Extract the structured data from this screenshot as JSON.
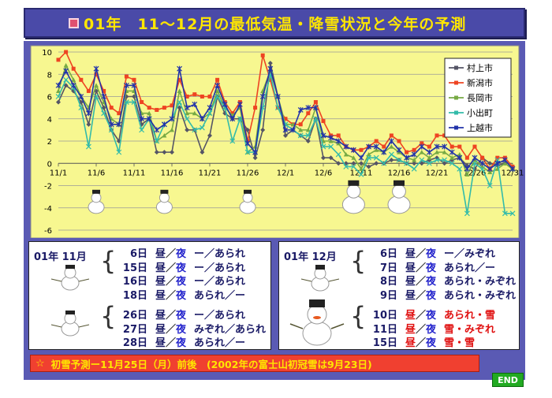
{
  "title": "01年　11～12月の最低気温・降雪状況と今年の予測",
  "chart_data": {
    "type": "line",
    "x": [
      "11/1",
      "11/2",
      "11/3",
      "11/4",
      "11/5",
      "11/6",
      "11/7",
      "11/8",
      "11/9",
      "11/10",
      "11/11",
      "11/12",
      "11/13",
      "11/14",
      "11/15",
      "11/16",
      "11/17",
      "11/18",
      "11/19",
      "11/20",
      "11/21",
      "11/22",
      "11/23",
      "11/24",
      "11/25",
      "11/26",
      "11/27",
      "11/28",
      "11/29",
      "11/30",
      "12/1",
      "12/2",
      "12/3",
      "12/4",
      "12/5",
      "12/6",
      "12/7",
      "12/8",
      "12/9",
      "12/10",
      "12/11",
      "12/12",
      "12/13",
      "12/14",
      "12/15",
      "12/16",
      "12/17",
      "12/18",
      "12/19",
      "12/20",
      "12/21",
      "12/22",
      "12/23",
      "12/24",
      "12/25",
      "12/26",
      "12/27",
      "12/28",
      "12/29",
      "12/30",
      "12/31"
    ],
    "x_tick_labels": [
      "11/1",
      "11/6",
      "11/11",
      "11/16",
      "11/21",
      "11/26",
      "12/1",
      "12/6",
      "12/11",
      "12/16",
      "12/21",
      "12/26",
      "12/31"
    ],
    "y_tick_labels": [
      "10",
      "8",
      "6",
      "4",
      "2",
      "0",
      "-2",
      "-4",
      "-6"
    ],
    "ylim": [
      -6,
      10
    ],
    "series": [
      {
        "name": "村上市",
        "color": "#555566",
        "marker": "diamond",
        "values": [
          5.5,
          7,
          6.5,
          5.5,
          3.5,
          6.5,
          5,
          3,
          2,
          6,
          6,
          3.5,
          4,
          1,
          1,
          1,
          5,
          3,
          3,
          1,
          2.5,
          6,
          4.5,
          4,
          4,
          3,
          0.5,
          3,
          9,
          6,
          2.5,
          3,
          2.5,
          2,
          4,
          0.5,
          0.5,
          0,
          0,
          0,
          0,
          -0.3,
          0,
          0,
          0.3,
          0.3,
          0,
          0,
          0,
          0.3,
          0.5,
          0,
          0.3,
          0.5,
          -0.2,
          -0.5,
          0.5,
          0,
          -0.2,
          0,
          -0.5
        ]
      },
      {
        "name": "新潟市",
        "color": "#ee4422",
        "marker": "square",
        "values": [
          9.3,
          10,
          8.5,
          7.5,
          6.5,
          8,
          6.5,
          5,
          4.5,
          7.8,
          7.5,
          5.5,
          5,
          4.8,
          5,
          5.2,
          7.5,
          6,
          6.2,
          6,
          6,
          7.5,
          5.5,
          4.5,
          5.5,
          2,
          5,
          9.7,
          7.5,
          5,
          4,
          3.5,
          3.5,
          4.5,
          5.5,
          3.8,
          2.5,
          2.5,
          1.5,
          1.2,
          1.2,
          1.5,
          2,
          1.5,
          2.5,
          2,
          1,
          1.2,
          1.8,
          1.5,
          2.5,
          2.5,
          1.5,
          1.5,
          0.5,
          1.5,
          0.5,
          -0.5,
          0.5,
          0.5,
          -0.3
        ]
      },
      {
        "name": "長岡市",
        "color": "#77aa44",
        "marker": "triangle",
        "values": [
          6.5,
          8.8,
          7.5,
          6,
          5,
          7,
          5.5,
          4,
          3.5,
          6.5,
          6.5,
          4.5,
          4.5,
          2,
          2.5,
          3,
          6.5,
          4.5,
          4.5,
          4,
          4.5,
          6.5,
          5,
          4.3,
          5,
          1,
          1.5,
          6.5,
          8.3,
          6,
          3.5,
          3.5,
          3,
          3,
          5,
          2,
          2,
          1.8,
          0.8,
          0.5,
          -0.5,
          0.8,
          1.2,
          1,
          1.5,
          1,
          0.5,
          0.3,
          1,
          0.5,
          1,
          1,
          0.5,
          0.8,
          -1,
          0.3,
          -0.3,
          -0.8,
          -0.5,
          0,
          -0.5
        ]
      },
      {
        "name": "小出町",
        "color": "#33bbaa",
        "marker": "x",
        "values": [
          6,
          7.5,
          6.8,
          5,
          1.5,
          6,
          4.5,
          3,
          1,
          5.5,
          5.5,
          3,
          4,
          2,
          3.5,
          4,
          5.5,
          4,
          3,
          3.2,
          4.5,
          6,
          5,
          2,
          4,
          1,
          1,
          5,
          8,
          5,
          3.5,
          3,
          2.5,
          2.5,
          4,
          1.5,
          1.5,
          0.8,
          -0.3,
          -0.3,
          -1,
          0.5,
          0.5,
          0,
          0.8,
          0.3,
          0,
          -0.5,
          0.3,
          0,
          0.3,
          0.3,
          0,
          -0.5,
          -4.5,
          0,
          -0.5,
          -2,
          0.3,
          -4.5,
          -4.5
        ]
      },
      {
        "name": "上越市",
        "color": "#2233aa",
        "marker": "star",
        "values": [
          7,
          8.3,
          7,
          6,
          4.5,
          8.5,
          6,
          3.5,
          3.5,
          7,
          7,
          4,
          4,
          3,
          3.5,
          4,
          8.5,
          5,
          5.3,
          4,
          5,
          7,
          5.3,
          4,
          5.3,
          1.8,
          1,
          6,
          8.5,
          6,
          3,
          3,
          4.8,
          5,
          5,
          2.5,
          2.3,
          2,
          1.5,
          1.2,
          0.5,
          1.5,
          1.5,
          1,
          2,
          1.2,
          0.5,
          0.8,
          1.5,
          1,
          1.5,
          1.5,
          1,
          0.5,
          -0.5,
          0.5,
          0,
          -0.5,
          0,
          0.3,
          -0.5
        ]
      }
    ]
  },
  "nov_box": {
    "title": "01年 11月",
    "rows": [
      {
        "day": "6日",
        "cond": "ー／あられ",
        "red": false
      },
      {
        "day": "15日",
        "cond": "ー／あられ",
        "red": false
      },
      {
        "day": "16日",
        "cond": "ー／あられ",
        "red": false
      },
      {
        "day": "18日",
        "cond": "あられ／ー",
        "red": false
      },
      {
        "day": "26日",
        "cond": "ー／あられ",
        "red": false
      },
      {
        "day": "27日",
        "cond": "みぞれ／あられ",
        "red": false
      },
      {
        "day": "28日",
        "cond": "あられ／ー",
        "red": false
      }
    ]
  },
  "dec_box": {
    "title": "01年 12月",
    "rows": [
      {
        "day": "6日",
        "cond": "ー／みぞれ",
        "red": false
      },
      {
        "day": "7日",
        "cond": "あられ／ー",
        "red": false
      },
      {
        "day": "8日",
        "cond": "あられ・みぞれ",
        "red": false
      },
      {
        "day": "9日",
        "cond": "あられ・みぞれ",
        "red": false
      },
      {
        "day": "10日",
        "cond": "あられ・雪",
        "red": true
      },
      {
        "day": "11日",
        "cond": "雪・みぞれ",
        "red": true
      },
      {
        "day": "15日",
        "cond": "雪・雪",
        "red": true
      }
    ]
  },
  "row_labels": {
    "day": "昼",
    "slash": "／",
    "night": "夜"
  },
  "forecast": {
    "star": "☆",
    "text": "初雪予測ー11月25日（月）前後　(2002年の富士山初冠雪は9月23日)"
  },
  "end_label": "END",
  "colors": {
    "title_bg": "#4a4aa8",
    "title_text": "#ffe600",
    "panel_bg": "#5a5ab4",
    "plot_bg": "#f7f790",
    "forecast_bg": "#f04030",
    "end_bg": "#22aa22"
  }
}
